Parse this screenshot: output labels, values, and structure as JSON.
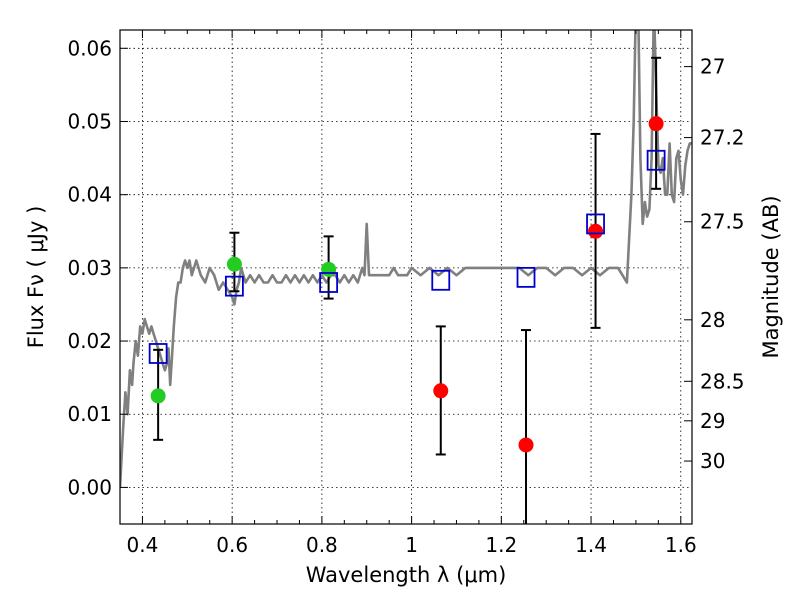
{
  "chart_data": {
    "type": "scatter",
    "xlabel": "Wavelength  λ (μm)",
    "ylabel": "Flux  Fν  ( μJy )",
    "ylabel_right": "Magnitude (AB)",
    "xlim": [
      0.35,
      1.625
    ],
    "ylim": [
      -0.005,
      0.0625
    ],
    "grid": true,
    "x_ticks": [
      0.4,
      0.6,
      0.8,
      1.0,
      1.2,
      1.4,
      1.6
    ],
    "x_tick_labels": [
      "0.4",
      "0.6",
      "0.8",
      "1",
      "1.2",
      "1.4",
      "1.6"
    ],
    "y_ticks": [
      0.0,
      0.01,
      0.02,
      0.03,
      0.04,
      0.05,
      0.06
    ],
    "y_tick_labels": [
      "0.00",
      "0.01",
      "0.02",
      "0.03",
      "0.04",
      "0.05",
      "0.06"
    ],
    "right_ticks": [
      {
        "label": "27",
        "flux": 0.0575
      },
      {
        "label": "27.2",
        "flux": 0.0478
      },
      {
        "label": "27.5",
        "flux": 0.0363
      },
      {
        "label": "28",
        "flux": 0.0229
      },
      {
        "label": "28.5",
        "flux": 0.0145
      },
      {
        "label": "29",
        "flux": 0.0091
      },
      {
        "label": "30",
        "flux": 0.0036
      }
    ],
    "colors": {
      "model": "#808080",
      "green": "#22cc22",
      "red": "#ff0000",
      "squares": "#0000cc",
      "errorbar": "#000000"
    },
    "model_spectrum": {
      "x": [
        0.35,
        0.357,
        0.362,
        0.367,
        0.372,
        0.377,
        0.38,
        0.385,
        0.39,
        0.395,
        0.4,
        0.405,
        0.41,
        0.415,
        0.42,
        0.425,
        0.43,
        0.435,
        0.44,
        0.445,
        0.45,
        0.455,
        0.458,
        0.462,
        0.465,
        0.47,
        0.475,
        0.48,
        0.485,
        0.49,
        0.495,
        0.5,
        0.505,
        0.51,
        0.515,
        0.52,
        0.53,
        0.54,
        0.55,
        0.56,
        0.57,
        0.58,
        0.59,
        0.6,
        0.605,
        0.61,
        0.615,
        0.62,
        0.63,
        0.64,
        0.65,
        0.66,
        0.67,
        0.68,
        0.69,
        0.7,
        0.71,
        0.72,
        0.73,
        0.74,
        0.75,
        0.76,
        0.77,
        0.78,
        0.79,
        0.8,
        0.81,
        0.82,
        0.83,
        0.84,
        0.85,
        0.86,
        0.87,
        0.88,
        0.89,
        0.895,
        0.9,
        0.905,
        0.91,
        0.92,
        0.93,
        0.94,
        0.95,
        0.96,
        0.97,
        0.98,
        0.99,
        1.0,
        1.02,
        1.04,
        1.06,
        1.08,
        1.1,
        1.12,
        1.14,
        1.16,
        1.18,
        1.2,
        1.22,
        1.24,
        1.26,
        1.28,
        1.3,
        1.32,
        1.34,
        1.36,
        1.38,
        1.4,
        1.42,
        1.44,
        1.46,
        1.47,
        1.48,
        1.49,
        1.495,
        1.5,
        1.505,
        1.51,
        1.515,
        1.52,
        1.525,
        1.53,
        1.535,
        1.54,
        1.545,
        1.55,
        1.555,
        1.56,
        1.565,
        1.57,
        1.575,
        1.58,
        1.585,
        1.59,
        1.595,
        1.6,
        1.605,
        1.61,
        1.615,
        1.62,
        1.625
      ],
      "y": [
        0.0,
        0.008,
        0.013,
        0.01,
        0.016,
        0.014,
        0.017,
        0.02,
        0.018,
        0.022,
        0.021,
        0.023,
        0.022,
        0.021,
        0.022,
        0.021,
        0.02,
        0.019,
        0.018,
        0.017,
        0.016,
        0.017,
        0.019,
        0.014,
        0.017,
        0.022,
        0.026,
        0.028,
        0.028,
        0.03,
        0.031,
        0.03,
        0.031,
        0.029,
        0.03,
        0.031,
        0.029,
        0.028,
        0.03,
        0.029,
        0.027,
        0.028,
        0.027,
        0.026,
        0.025,
        0.027,
        0.028,
        0.03,
        0.028,
        0.029,
        0.028,
        0.029,
        0.028,
        0.028,
        0.029,
        0.028,
        0.028,
        0.029,
        0.028,
        0.029,
        0.028,
        0.029,
        0.028,
        0.029,
        0.028,
        0.029,
        0.028,
        0.029,
        0.029,
        0.028,
        0.029,
        0.028,
        0.029,
        0.028,
        0.03,
        0.029,
        0.036,
        0.029,
        0.029,
        0.029,
        0.029,
        0.029,
        0.029,
        0.03,
        0.029,
        0.029,
        0.029,
        0.03,
        0.029,
        0.03,
        0.029,
        0.03,
        0.029,
        0.03,
        0.03,
        0.03,
        0.03,
        0.03,
        0.03,
        0.03,
        0.029,
        0.03,
        0.03,
        0.029,
        0.03,
        0.03,
        0.029,
        0.03,
        0.029,
        0.03,
        0.03,
        0.029,
        0.028,
        0.04,
        0.05,
        0.066,
        0.066,
        0.045,
        0.036,
        0.039,
        0.037,
        0.038,
        0.045,
        0.066,
        0.055,
        0.044,
        0.043,
        0.045,
        0.04,
        0.04,
        0.047,
        0.04,
        0.039,
        0.045,
        0.046,
        0.042,
        0.04,
        0.044,
        0.046,
        0.047,
        0.047
      ]
    },
    "series": [
      {
        "marker": "circle",
        "color": "green",
        "x": [
          0.435,
          0.605,
          0.815
        ],
        "y": [
          0.0125,
          0.0305,
          0.0298
        ]
      },
      {
        "marker": "circle",
        "color": "red",
        "x": [
          1.065,
          1.255,
          1.41,
          1.545
        ],
        "y": [
          0.0132,
          0.0058,
          0.035,
          0.0497
        ]
      },
      {
        "marker": "square",
        "color": "squares",
        "x": [
          0.435,
          0.605,
          0.815,
          1.065,
          1.255,
          1.41,
          1.545
        ],
        "y": [
          0.0183,
          0.0275,
          0.028,
          0.0283,
          0.0287,
          0.036,
          0.0447
        ]
      }
    ],
    "errorbars": [
      {
        "x": 0.435,
        "low": 0.0065,
        "high": 0.0188
      },
      {
        "x": 0.605,
        "low": 0.0268,
        "high": 0.0348
      },
      {
        "x": 0.815,
        "low": 0.0258,
        "high": 0.0343
      },
      {
        "x": 1.065,
        "low": 0.0045,
        "high": 0.022
      },
      {
        "x": 1.255,
        "low": -0.006,
        "high": 0.0215
      },
      {
        "x": 1.41,
        "low": 0.0218,
        "high": 0.0483
      },
      {
        "x": 1.545,
        "low": 0.0408,
        "high": 0.0587
      }
    ]
  }
}
